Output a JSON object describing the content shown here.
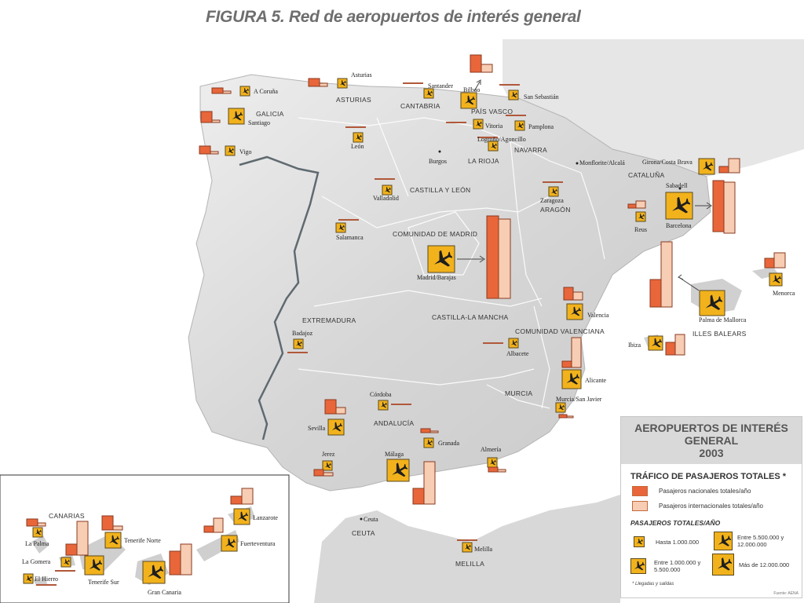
{
  "title": "FIGURA 5. Red de aeropuertos de interés general",
  "colors": {
    "nacional": "#e8663a",
    "internacional": "#f7cdb3",
    "plane_bg": "#f2b21c",
    "sea": "#ffffff",
    "land": "#dcdcdc",
    "border": "#5f6a70"
  },
  "regions": [
    "GALICIA",
    "ASTURIAS",
    "CANTABRIA",
    "PAÍS VASCO",
    "NAVARRA",
    "LA RIOJA",
    "CASTILLA Y LEÓN",
    "ARAGÓN",
    "CATALUÑA",
    "COMUNIDAD DE MADRID",
    "EXTREMADURA",
    "CASTILLA-LA MANCHA",
    "COMUNIDAD VALENCIANA",
    "MURCIA",
    "ANDALUCÍA",
    "ILLES BALEARS",
    "CANARIAS",
    "CEUTA",
    "MELILLA"
  ],
  "airports": {
    "a_coruna": "A Coruña",
    "santiago": "Santiago",
    "vigo": "Vigo",
    "asturias": "Asturias",
    "santander": "Santander",
    "bilbao": "Bilbao",
    "san_sebastian": "San Sebastián",
    "vitoria": "Vitoria",
    "pamplona": "Pamplona",
    "logrono": "Logroño/Agoncillo",
    "leon": "León",
    "burgos": "Burgos",
    "valladolid": "Valladolid",
    "salamanca": "Salamanca",
    "zaragoza": "Zaragoza",
    "monflorite": "Monflorite/Alcalá",
    "girona": "Girona/Costa Brava",
    "sabadell": "Sabadell",
    "barcelona": "Barcelona",
    "reus": "Reus",
    "madrid": "Madrid/Barajas",
    "badajoz": "Badajoz",
    "valencia": "Valencia",
    "albacete": "Albacete",
    "alicante": "Alicante",
    "murcia": "Murcia/San Javier",
    "palma": "Palma de Mallorca",
    "menorca": "Menorca",
    "ibiza": "Ibiza",
    "cordoba": "Córdoba",
    "sevilla": "Sevilla",
    "granada": "Granada",
    "jerez": "Jerez",
    "malaga": "Málaga",
    "almeria": "Almería",
    "ceuta": "Ceuta",
    "melilla": "Melilla",
    "la_palma": "La Palma",
    "la_gomera": "La Gomera",
    "el_hierro": "El Hierro",
    "tenerife_norte": "Tenerife Norte",
    "tenerife_sur": "Tenerife Sur",
    "gran_canaria": "Gran Canaria",
    "lanzarote": "Lanzarote",
    "fuerteventura": "Fuerteventura"
  },
  "legend": {
    "heading_line1": "AEROPUERTOS DE INTERÉS",
    "heading_line2": "GENERAL",
    "heading_line3": "2003",
    "traffic_title": "TRÁFICO DE PASAJEROS TOTALES *",
    "nacional_label": "Pasajeros nacionales totales/año",
    "internacional_label": "Pasajeros internacionales totales/año",
    "totals_title": "PASAJEROS TOTALES/AÑO",
    "tier1": "Hasta 1.000.000",
    "tier2": "Entre 1.000.000 y 5.500.000",
    "tier3": "Entre 5.500.000 y 12.000.000",
    "tier4": "Más de 12.000.000",
    "note": "* Llegadas y salidas",
    "source": "Fuente: AENA"
  }
}
